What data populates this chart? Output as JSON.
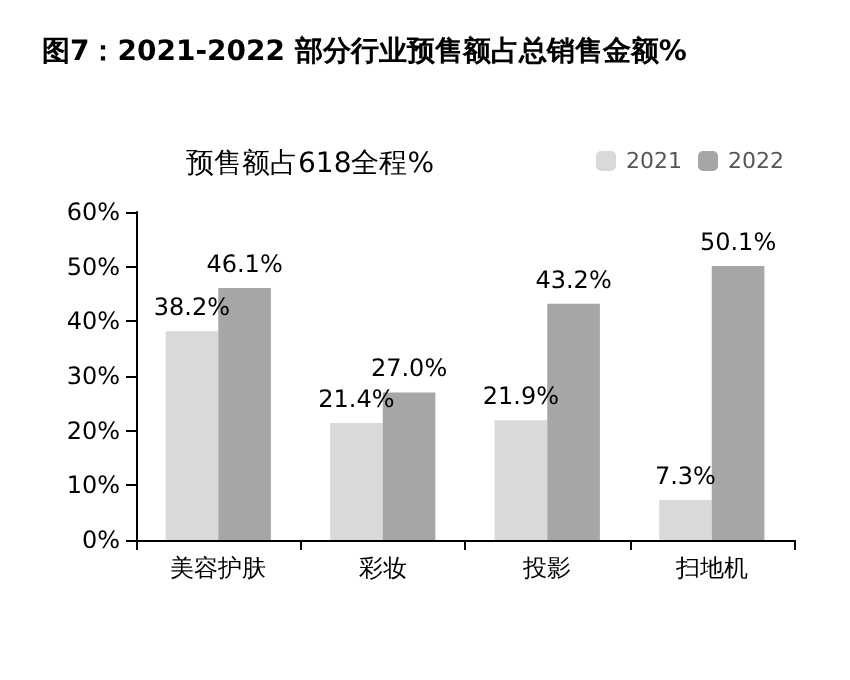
{
  "chart_data": {
    "type": "bar",
    "title": "图7：2021-2022 部分行业预售额占总销售金额%",
    "subtitle": "预售额占618全程%",
    "categories": [
      "美容护肤",
      "彩妆",
      "投影",
      "扫地机"
    ],
    "series": [
      {
        "name": "2021",
        "color": "#d9d9d9",
        "values": [
          38.2,
          21.4,
          21.9,
          7.3
        ],
        "value_labels": [
          "38.2%",
          "21.4%",
          "21.9%",
          "7.3%"
        ]
      },
      {
        "name": "2022",
        "color": "#a6a6a6",
        "values": [
          46.1,
          27.0,
          43.2,
          50.1
        ],
        "value_labels": [
          "46.1%",
          "27.0%",
          "43.2%",
          "50.1%"
        ]
      }
    ],
    "ylim": [
      0,
      60
    ],
    "yticks": [
      {
        "value": 0,
        "label": "0%"
      },
      {
        "value": 10,
        "label": "10%"
      },
      {
        "value": 20,
        "label": "20%"
      },
      {
        "value": 30,
        "label": "30%"
      },
      {
        "value": 40,
        "label": "40%"
      },
      {
        "value": 50,
        "label": "50%"
      },
      {
        "value": 60,
        "label": "60%"
      }
    ],
    "grid": false,
    "legend": "top right"
  }
}
